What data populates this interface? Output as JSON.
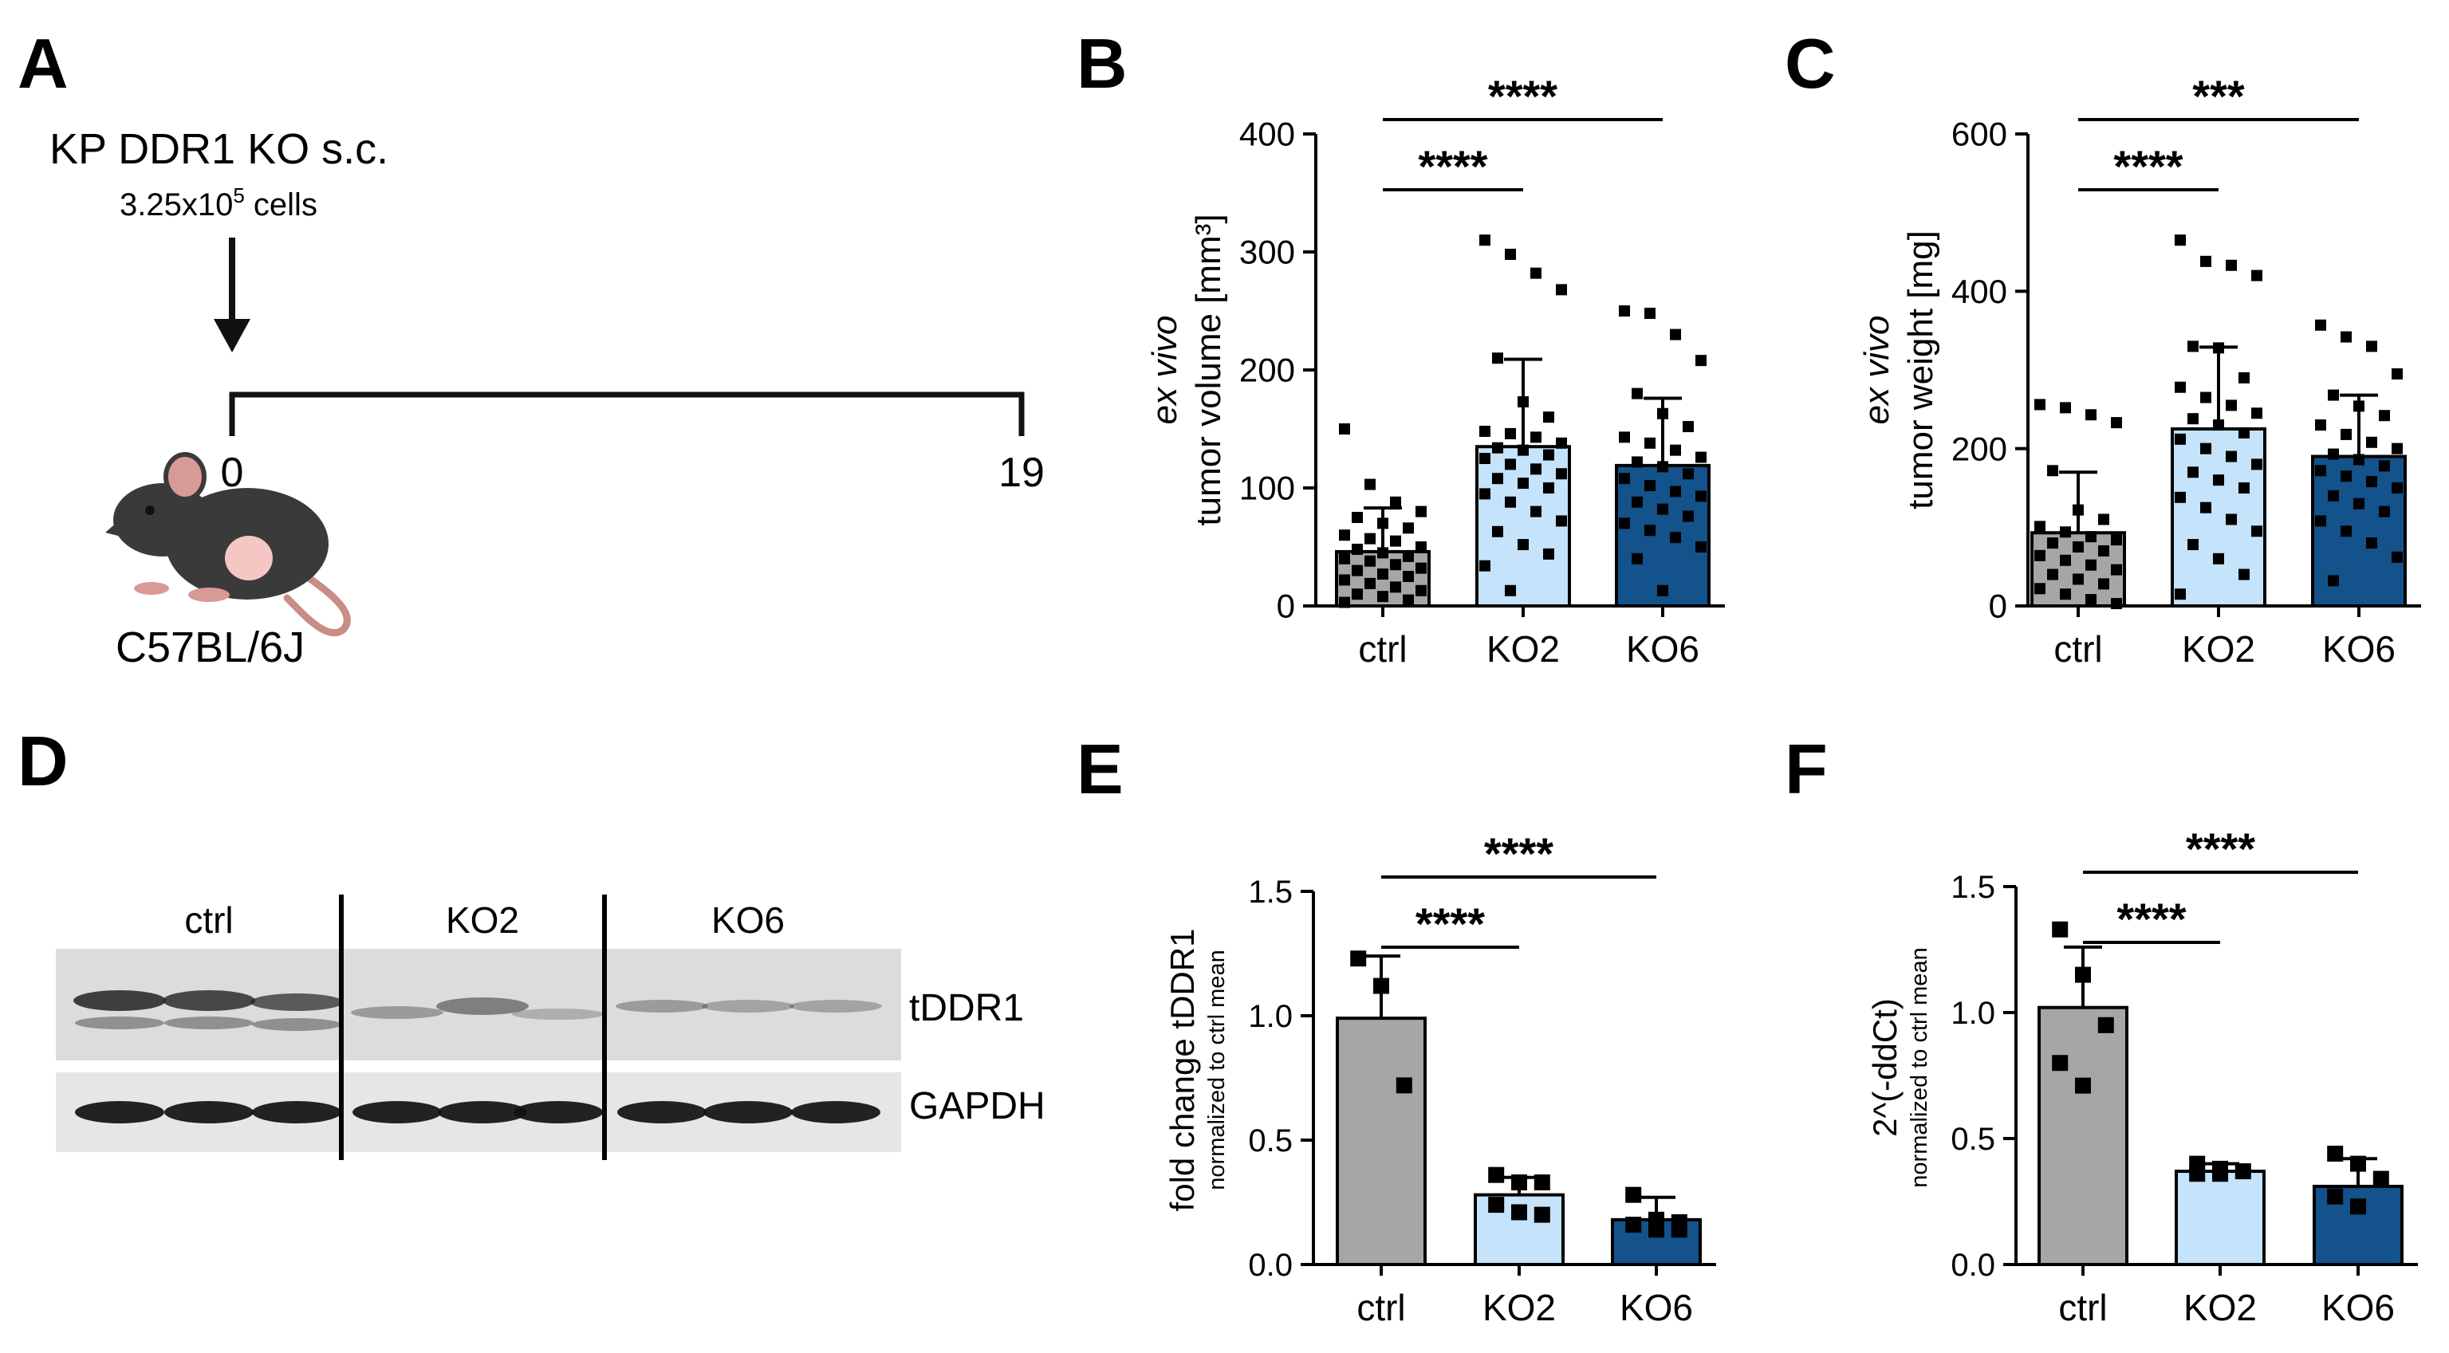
{
  "panels": {
    "A": {
      "letter": "A",
      "title": "KP DDR1 KO s.c.",
      "cells_prefix": "3.25x10",
      "cells_exp": "5",
      "cells_suffix": " cells",
      "timeline_start": "0",
      "timeline_end": "19",
      "mouse_strain": "C57BL/6J"
    },
    "B": {
      "letter": "B"
    },
    "C": {
      "letter": "C"
    },
    "D": {
      "letter": "D",
      "groups": [
        "ctrl",
        "KO2",
        "KO6"
      ],
      "bands": [
        "tDDR1",
        "GAPDH"
      ]
    },
    "E": {
      "letter": "E"
    },
    "F": {
      "letter": "F"
    }
  },
  "colors": {
    "ctrl": "#a6a6a8",
    "KO2": "#c5e3fb",
    "KO6": "#13528a"
  },
  "chart_data": [
    {
      "id": "B",
      "type": "bar",
      "categories": [
        "ctrl",
        "KO2",
        "KO6"
      ],
      "values": [
        46,
        135,
        119
      ],
      "sd": [
        37,
        74,
        57
      ],
      "ylabel_italic": "ex vivo",
      "ylabel": "tumor volume [mm³]",
      "ylim": [
        0,
        400
      ],
      "yticks": [
        0,
        100,
        200,
        300,
        400
      ],
      "points": [
        [
          150,
          103,
          88,
          80,
          75,
          70,
          66,
          60,
          57,
          55,
          50,
          48,
          45,
          42,
          40,
          38,
          35,
          32,
          30,
          27,
          25,
          22,
          19,
          16,
          13,
          10,
          8,
          5,
          3
        ],
        [
          310,
          298,
          282,
          268,
          210,
          173,
          160,
          148,
          146,
          143,
          138,
          134,
          132,
          128,
          125,
          120,
          116,
          112,
          108,
          104,
          100,
          95,
          88,
          80,
          72,
          63,
          52,
          44,
          34,
          13
        ],
        [
          250,
          248,
          230,
          208,
          180,
          163,
          152,
          143,
          138,
          132,
          126,
          122,
          118,
          112,
          108,
          102,
          97,
          93,
          88,
          82,
          76,
          70,
          64,
          58,
          50,
          40,
          13
        ]
      ],
      "significance": [
        {
          "from": "ctrl",
          "to": "KO2",
          "label": "****"
        },
        {
          "from": "ctrl",
          "to": "KO6",
          "label": "****"
        }
      ]
    },
    {
      "id": "C",
      "type": "bar",
      "categories": [
        "ctrl",
        "KO2",
        "KO6"
      ],
      "values": [
        93,
        225,
        190
      ],
      "sd": [
        77,
        104,
        78
      ],
      "ylabel_italic": "ex vivo",
      "ylabel": "tumor weight [mg]",
      "ylim": [
        0,
        600
      ],
      "yticks": [
        0,
        200,
        400,
        600
      ],
      "points": [
        [
          256,
          252,
          243,
          233,
          172,
          122,
          110,
          101,
          94,
          88,
          84,
          80,
          75,
          70,
          64,
          58,
          52,
          46,
          40,
          34,
          28,
          22,
          15,
          8,
          3
        ],
        [
          465,
          438,
          433,
          420,
          330,
          328,
          290,
          278,
          265,
          255,
          245,
          238,
          230,
          220,
          212,
          200,
          190,
          180,
          170,
          160,
          150,
          138,
          125,
          110,
          95,
          78,
          60,
          40,
          15
        ],
        [
          357,
          342,
          330,
          295,
          268,
          254,
          242,
          230,
          218,
          208,
          200,
          193,
          186,
          178,
          172,
          165,
          158,
          150,
          140,
          130,
          120,
          108,
          95,
          80,
          62,
          32
        ]
      ],
      "significance": [
        {
          "from": "ctrl",
          "to": "KO2",
          "label": "****"
        },
        {
          "from": "ctrl",
          "to": "KO6",
          "label": "***"
        }
      ]
    },
    {
      "id": "E",
      "type": "bar",
      "categories": [
        "ctrl",
        "KO2",
        "KO6"
      ],
      "values": [
        0.99,
        0.28,
        0.18
      ],
      "sd": [
        0.25,
        0.07,
        0.09
      ],
      "ylabel": "fold change tDDR1",
      "ylabel_sub": "normalized to ctrl mean",
      "ylim": [
        0,
        1.5
      ],
      "yticks": [
        0,
        0.5,
        1.0,
        1.5
      ],
      "yticklabels": [
        "0.0",
        "0.5",
        "1.0",
        "1.5"
      ],
      "points": [
        [
          1.23,
          1.12,
          0.72
        ],
        [
          0.36,
          0.33,
          0.33,
          0.24,
          0.21,
          0.2
        ],
        [
          0.28,
          0.18,
          0.17,
          0.16,
          0.14,
          0.14
        ]
      ],
      "significance": [
        {
          "from": "ctrl",
          "to": "KO2",
          "label": "****"
        },
        {
          "from": "ctrl",
          "to": "KO6",
          "label": "****"
        }
      ]
    },
    {
      "id": "F",
      "type": "bar",
      "categories": [
        "ctrl",
        "KO2",
        "KO6"
      ],
      "values": [
        1.02,
        0.37,
        0.31
      ],
      "sd": [
        0.24,
        0.03,
        0.11
      ],
      "ylabel": "2^(-ddCt)",
      "ylabel_sub": "normalized to ctrl mean",
      "ylim": [
        0,
        1.5
      ],
      "yticks": [
        0,
        0.5,
        1.0,
        1.5
      ],
      "yticklabels": [
        "0.0",
        "0.5",
        "1.0",
        "1.5"
      ],
      "points": [
        [
          1.33,
          1.15,
          0.95,
          0.8,
          0.71
        ],
        [
          0.4,
          0.38,
          0.37,
          0.36,
          0.36
        ],
        [
          0.44,
          0.4,
          0.34,
          0.27,
          0.23
        ]
      ],
      "significance": [
        {
          "from": "ctrl",
          "to": "KO2",
          "label": "****"
        },
        {
          "from": "ctrl",
          "to": "KO6",
          "label": "****"
        }
      ]
    }
  ]
}
